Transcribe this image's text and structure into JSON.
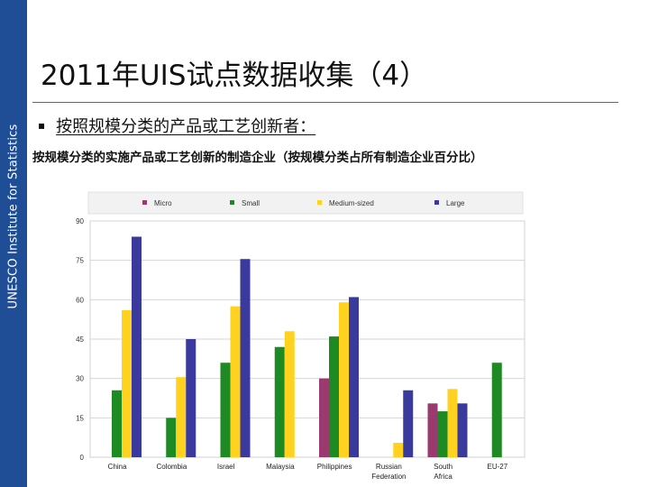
{
  "sidebar": {
    "label": "UNESCO Institute for Statistics"
  },
  "title": "2011年UIS试点数据收集（4）",
  "bullet": {
    "marker": "▪",
    "text": "按照规模分类的产品或工艺创新者："
  },
  "subtitle": "按规模分类的实施产品或工艺创新的制造企业（按规模分类占所有制造企业百分比）",
  "colors": {
    "sidebar": "#1f4e96",
    "Micro": "#9b3a6e",
    "Small": "#1e8a23",
    "Medium-sized": "#ffd21f",
    "Large": "#3a3a9e"
  },
  "chart_data": {
    "type": "bar",
    "categories": [
      "China",
      "Colombia",
      "Israel",
      "Malaysia",
      "Philippines",
      "Russian Federation",
      "South Africa",
      "EU-27"
    ],
    "category_lines": [
      [
        "China"
      ],
      [
        "Colombia"
      ],
      [
        "Israel"
      ],
      [
        "Malaysia"
      ],
      [
        "Philippines"
      ],
      [
        "Russian",
        "Federation"
      ],
      [
        "South",
        "Africa"
      ],
      [
        "EU-27"
      ]
    ],
    "series": [
      {
        "name": "Micro",
        "values": [
          null,
          null,
          null,
          null,
          30,
          null,
          20.5,
          null
        ]
      },
      {
        "name": "Small",
        "values": [
          25.5,
          15,
          36,
          42,
          46,
          null,
          17.5,
          36
        ]
      },
      {
        "name": "Medium-sized",
        "values": [
          56,
          30.5,
          57.5,
          48,
          59,
          5.5,
          26,
          null
        ]
      },
      {
        "name": "Large",
        "values": [
          84,
          45,
          75.5,
          null,
          61,
          25.5,
          20.5,
          null
        ]
      }
    ],
    "ylim": [
      0,
      90
    ],
    "yticks": [
      0,
      15,
      30,
      45,
      60,
      75,
      90
    ],
    "grid": true,
    "legend_position": "top"
  }
}
